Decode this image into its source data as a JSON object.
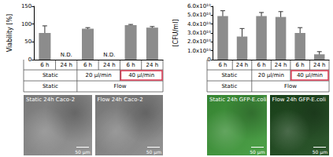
{
  "chart_data": [
    {
      "type": "bar",
      "categories": [
        "6 h",
        "24 h",
        "6 h",
        "24 h",
        "6 h",
        "24 h"
      ],
      "group_labels": [
        "Static",
        "Static",
        "20 µl/min",
        "20 µl/min",
        "40 µl/min",
        "40 µl/min"
      ],
      "super_labels": [
        "Static",
        "Static",
        "Flow",
        "Flow",
        "Flow",
        "Flow"
      ],
      "values": [
        75,
        null,
        87,
        null,
        97,
        90
      ],
      "errors": [
        20,
        null,
        3,
        null,
        2,
        3
      ],
      "value_labels": [
        null,
        "N.D.",
        null,
        "N.D.",
        null,
        null
      ],
      "y_label": "Viability [%]",
      "color": "#8c8c8c",
      "ylim": [
        0,
        150
      ],
      "yticks": [
        0,
        50,
        100,
        150
      ],
      "grid": false,
      "annotations": [
        {
          "type": "box",
          "target": "40 µl/min",
          "color": "#d9364f"
        }
      ]
    },
    {
      "type": "bar",
      "categories": [
        "6 h",
        "24 h",
        "6 h",
        "24 h",
        "6 h",
        "24 h"
      ],
      "group_labels": [
        "Static",
        "Static",
        "20 µl/min",
        "20 µl/min",
        "40 µl/min",
        "40 µl/min"
      ],
      "super_labels": [
        "Static",
        "Static",
        "Flow",
        "Flow",
        "Flow",
        "Flow"
      ],
      "values": [
        49000000000,
        26000000000,
        49000000000,
        48000000000,
        30000000000,
        6000000000
      ],
      "errors": [
        6000000000,
        9000000000,
        4000000000,
        6000000000,
        6000000000,
        3000000000
      ],
      "y_label": "[CFU/ml]",
      "color": "#8c8c8c",
      "ylim": [
        0,
        60000000000
      ],
      "yticks": [
        0,
        {
          "value": 10000000000,
          "label": "1.0x10¹⁰"
        },
        {
          "value": 20000000000,
          "label": "2.0x10¹⁰"
        },
        {
          "value": 30000000000,
          "label": "3.0x10¹⁰"
        },
        {
          "value": 40000000000,
          "label": "4.0x10¹⁰"
        },
        {
          "value": 50000000000,
          "label": "5.0x10¹⁰"
        },
        {
          "value": 60000000000,
          "label": "6.0x10¹⁰"
        }
      ],
      "grid": false,
      "annotations": [
        {
          "type": "box",
          "target": "40 µl/min",
          "color": "#d9364f"
        }
      ]
    }
  ],
  "images": [
    {
      "caption": "Static 24h Caco-2",
      "scale_bar": "50 μm",
      "color": "#8e8e8e"
    },
    {
      "caption": "Flow 24h Caco-2",
      "scale_bar": "50 μm",
      "color": "#8a8a8a"
    },
    {
      "caption": "Static 24h GFP-E.coli",
      "scale_bar": "50 μm",
      "color": "#3f9a3a"
    },
    {
      "caption": "Flow 24h GFP-E.coli",
      "scale_bar": "50 μm",
      "color": "#1d4a1d"
    }
  ]
}
